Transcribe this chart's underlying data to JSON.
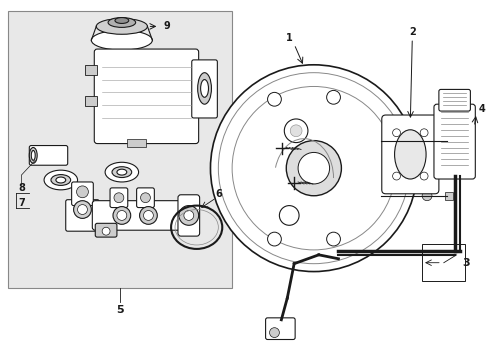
{
  "bg_color": "#ffffff",
  "box_fill": "#e8e8e8",
  "line_color": "#1a1a1a",
  "fig_width": 4.89,
  "fig_height": 3.6,
  "dpi": 100
}
